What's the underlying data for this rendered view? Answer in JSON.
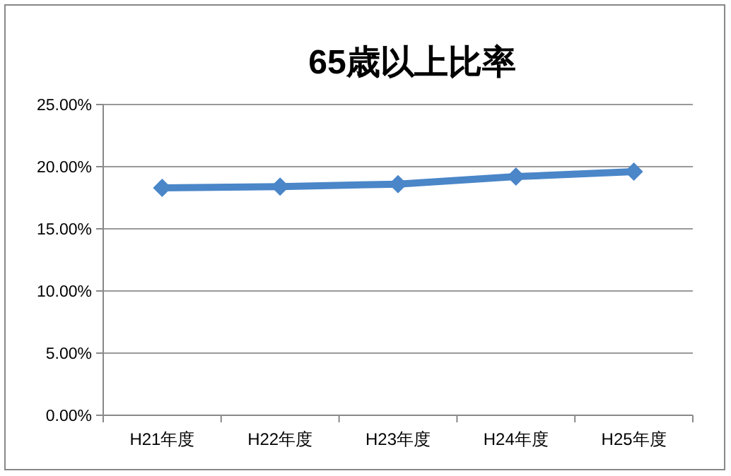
{
  "chart_data": {
    "type": "line",
    "title": "65歳以上比率",
    "categories": [
      "H21年度",
      "H22年度",
      "H23年度",
      "H24年度",
      "H25年度"
    ],
    "series": [
      {
        "color": "#4a86c8",
        "values": [
          18.3,
          18.4,
          18.6,
          19.2,
          19.6
        ]
      }
    ],
    "ylim": [
      0,
      25
    ],
    "yticks": [
      {
        "value": 0,
        "label": "0.00%"
      },
      {
        "value": 5,
        "label": "5.00%"
      },
      {
        "value": 10,
        "label": "10.00%"
      },
      {
        "value": 15,
        "label": "15.00%"
      },
      {
        "value": 20,
        "label": "20.00%"
      },
      {
        "value": 25,
        "label": "25.00%"
      }
    ],
    "grid": "y",
    "marker": "diamond",
    "line_style": "solid"
  }
}
